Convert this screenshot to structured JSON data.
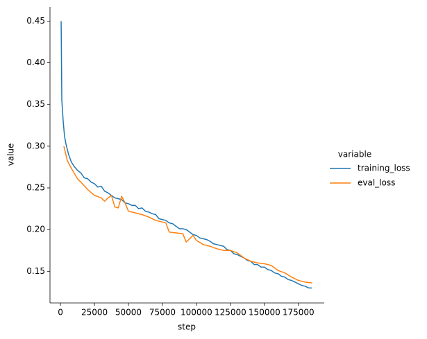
{
  "chart_data": {
    "type": "line",
    "x_label": "step",
    "y_label": "value",
    "legend_title": "variable",
    "xlim": [
      -7700,
      194000
    ],
    "ylim": [
      0.112,
      0.467
    ],
    "xticks": [
      0,
      25000,
      50000,
      75000,
      100000,
      125000,
      150000,
      175000
    ],
    "yticks": [
      0.15,
      {
        "value": 0.2,
        "label": "0.20"
      },
      0.25,
      {
        "value": 0.3,
        "label": "0.30"
      },
      0.35,
      {
        "value": 0.4,
        "label": "0.40"
      },
      0.45
    ],
    "series": [
      {
        "name": "training_loss",
        "color": "#1f77b4",
        "x": [
          500,
          1000,
          2000,
          3000,
          4000,
          6000,
          8000,
          10000,
          12500,
          15000,
          17500,
          20000,
          22500,
          25000,
          27500,
          30000,
          32500,
          35000,
          37500,
          40000,
          42500,
          45000,
          47500,
          50000,
          52500,
          55000,
          57500,
          60000,
          62500,
          65000,
          67500,
          70000,
          72500,
          75000,
          77500,
          80000,
          82500,
          85000,
          87500,
          90000,
          92500,
          95000,
          97500,
          100000,
          102500,
          105000,
          107500,
          110000,
          112500,
          115000,
          117500,
          120000,
          122500,
          125000,
          127500,
          130000,
          132500,
          135000,
          137500,
          140000,
          142500,
          145000,
          147500,
          150000,
          152500,
          155000,
          157500,
          160000,
          162500,
          165000,
          167500,
          170000,
          172500,
          175000,
          177500,
          180000,
          182500,
          185000
        ],
        "values": [
          0.45,
          0.355,
          0.33,
          0.312,
          0.303,
          0.29,
          0.281,
          0.276,
          0.271,
          0.268,
          0.262,
          0.261,
          0.257,
          0.255,
          0.251,
          0.252,
          0.246,
          0.244,
          0.241,
          0.238,
          0.237,
          0.236,
          0.232,
          0.231,
          0.229,
          0.229,
          0.225,
          0.226,
          0.222,
          0.221,
          0.219,
          0.218,
          0.213,
          0.212,
          0.211,
          0.208,
          0.207,
          0.204,
          0.201,
          0.201,
          0.2,
          0.197,
          0.194,
          0.193,
          0.19,
          0.189,
          0.188,
          0.186,
          0.183,
          0.182,
          0.181,
          0.18,
          0.176,
          0.175,
          0.171,
          0.17,
          0.168,
          0.166,
          0.163,
          0.162,
          0.158,
          0.158,
          0.155,
          0.155,
          0.152,
          0.151,
          0.148,
          0.147,
          0.144,
          0.143,
          0.14,
          0.139,
          0.137,
          0.135,
          0.133,
          0.132,
          0.13,
          0.13
        ]
      },
      {
        "name": "eval_loss",
        "color": "#ff7f0e",
        "x": [
          2500,
          5000,
          7500,
          10000,
          12500,
          15000,
          20000,
          25000,
          30000,
          32500,
          35000,
          37500,
          40000,
          42500,
          45000,
          47500,
          50000,
          55000,
          60000,
          65000,
          70000,
          75000,
          77500,
          80000,
          85000,
          90000,
          92500,
          95000,
          97500,
          100000,
          105000,
          110000,
          115000,
          120000,
          125000,
          130000,
          135000,
          140000,
          145000,
          150000,
          155000,
          160000,
          165000,
          170000,
          175000,
          180000,
          185000
        ],
        "values": [
          0.3,
          0.283,
          0.275,
          0.268,
          0.261,
          0.257,
          0.248,
          0.241,
          0.238,
          0.234,
          0.238,
          0.241,
          0.227,
          0.226,
          0.24,
          0.232,
          0.222,
          0.22,
          0.218,
          0.215,
          0.211,
          0.209,
          0.208,
          0.197,
          0.196,
          0.195,
          0.185,
          0.189,
          0.193,
          0.187,
          0.182,
          0.18,
          0.177,
          0.175,
          0.175,
          0.172,
          0.166,
          0.162,
          0.16,
          0.159,
          0.157,
          0.151,
          0.148,
          0.143,
          0.139,
          0.137,
          0.136
        ]
      }
    ]
  }
}
